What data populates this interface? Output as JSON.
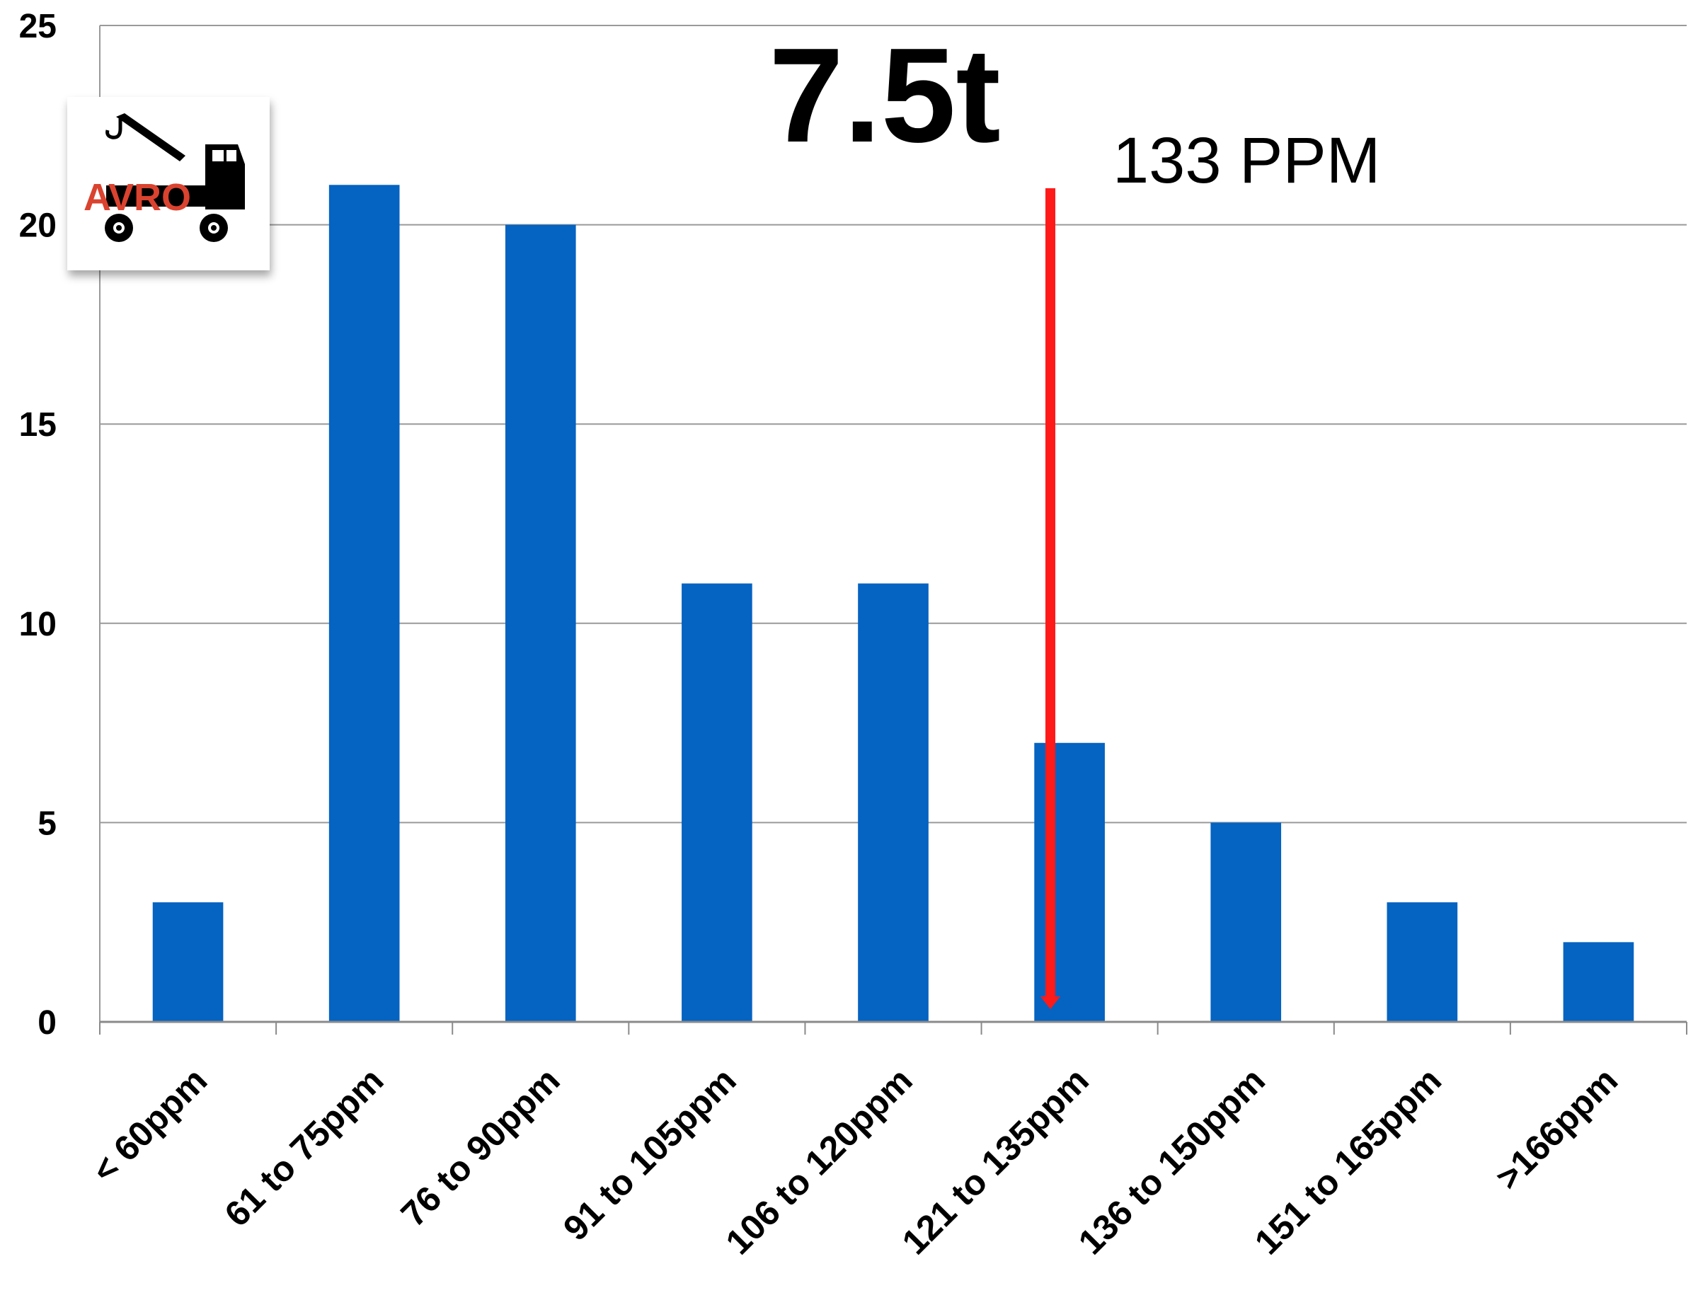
{
  "chart_data": {
    "type": "bar",
    "title": "7.5t",
    "categories": [
      "< 60ppm",
      "61 to 75ppm",
      "76 to 90ppm",
      "91 to 105ppm",
      "106 to 120ppm",
      "121 to 135ppm",
      "136 to 150ppm",
      "151 to 165ppm",
      ">166ppm"
    ],
    "values": [
      3,
      21,
      20,
      11,
      11,
      7,
      5,
      3,
      2
    ],
    "ylim": [
      0,
      25
    ],
    "yticks": [
      "0",
      "5",
      "10",
      "15",
      "20",
      "25"
    ],
    "grid": true,
    "bar_color": "#0563C1",
    "annotation": {
      "text": "133 PPM",
      "value": 133,
      "marker": "red downward arrow",
      "color": "#FF1A1A"
    }
  },
  "logo": {
    "text": "AVRO",
    "icon": "tow-truck-icon"
  }
}
